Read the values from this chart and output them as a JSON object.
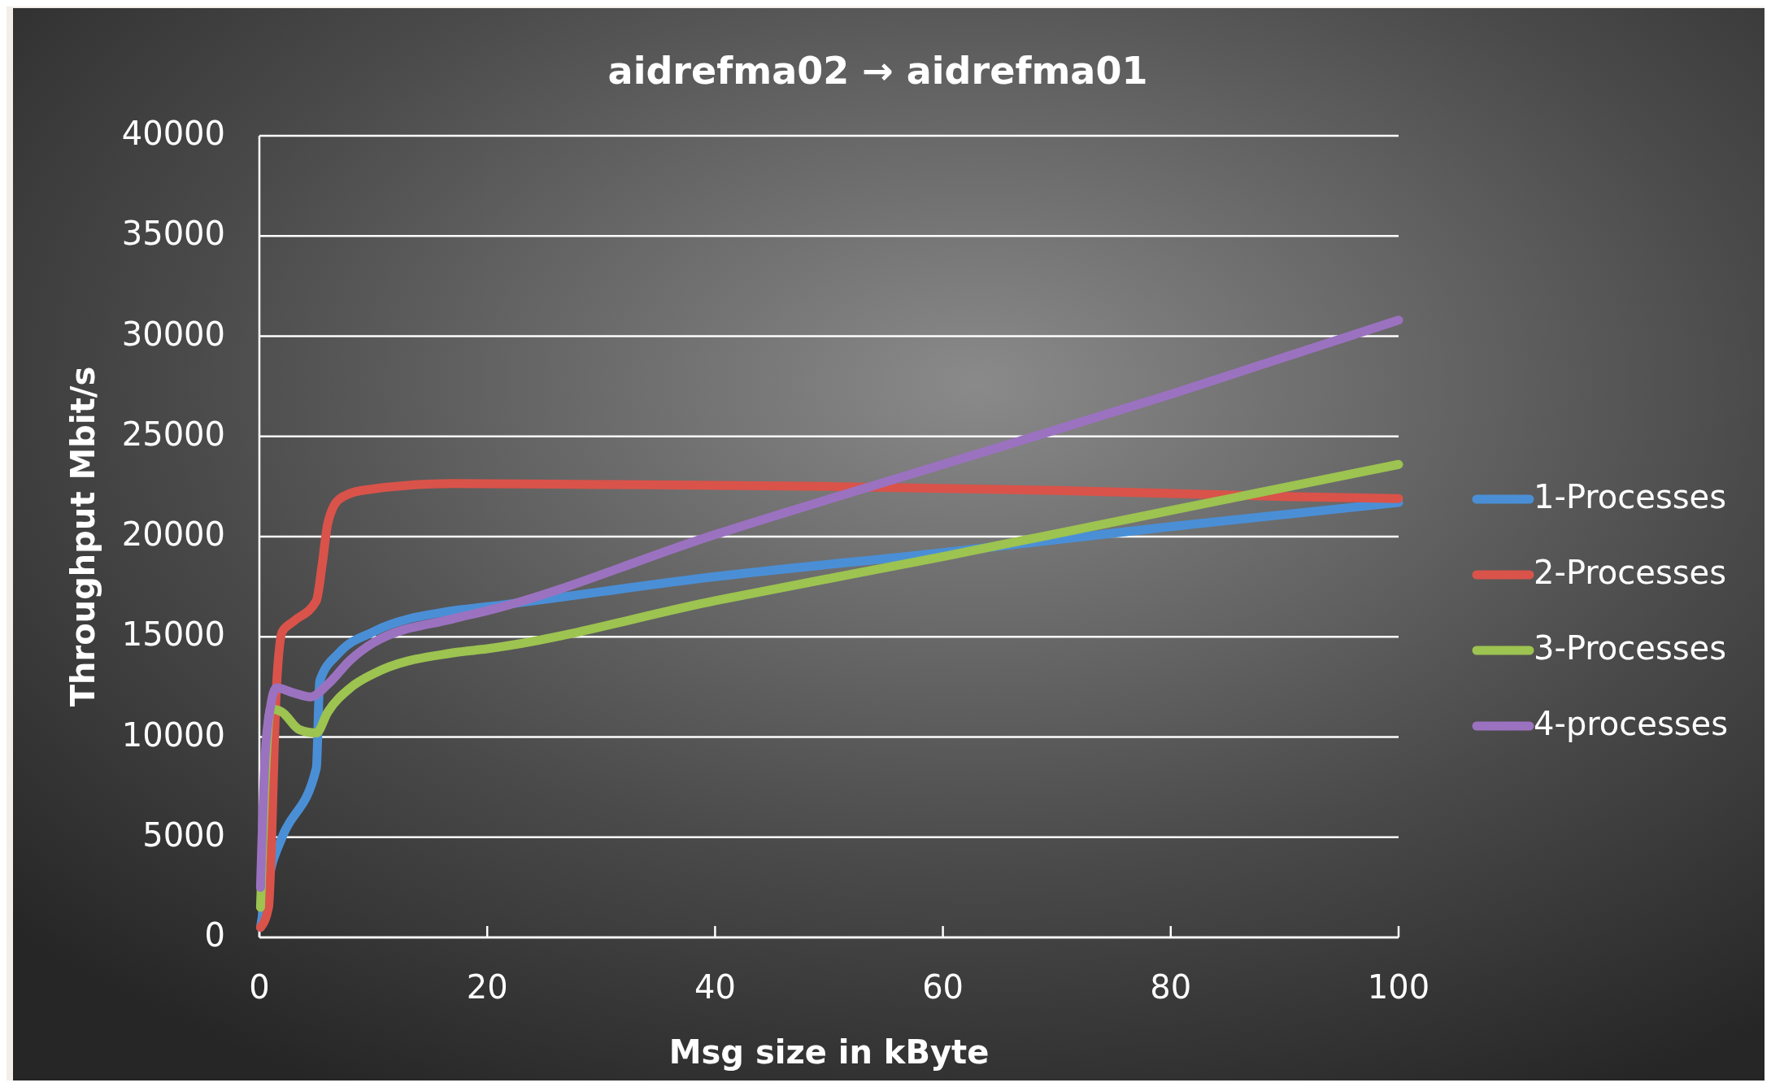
{
  "chart_data": {
    "type": "line",
    "title": "aidrefma02 → aidrefma01",
    "xlabel": "Msg size in kByte",
    "ylabel": "Throughput  Mbit/s",
    "xlim": [
      0,
      100
    ],
    "xticks": [
      0,
      20,
      40,
      60,
      80,
      100
    ],
    "ylim": [
      0,
      40000
    ],
    "yticks": [
      0,
      5000,
      10000,
      15000,
      20000,
      25000,
      30000,
      35000,
      40000
    ],
    "grid": "y",
    "legend": "right",
    "marker": "none",
    "line_style": "solid",
    "series": [
      {
        "name": "1-Processes",
        "color": "#4a8fd6",
        "x": [
          0.1,
          1,
          2,
          5,
          5.3,
          7,
          10,
          17,
          20,
          40,
          60,
          80,
          100
        ],
        "values": [
          500,
          3400,
          5000,
          8450,
          12800,
          14200,
          15250,
          16300,
          16500,
          18000,
          19200,
          20500,
          21700
        ]
      },
      {
        "name": "2-Processes",
        "color": "#d9534a",
        "x": [
          0.1,
          0.8,
          1.5,
          2,
          3,
          5,
          5.5,
          6,
          7,
          9,
          17,
          30,
          50,
          70,
          90,
          100
        ],
        "values": [
          500,
          1500,
          12500,
          15250,
          15770,
          16800,
          18550,
          20650,
          21860,
          22300,
          22650,
          22600,
          22500,
          22300,
          22000,
          21900
        ]
      },
      {
        "name": "3-Processes",
        "color": "#9dc350",
        "x": [
          0.1,
          1,
          2,
          3.5,
          5,
          6,
          8,
          10,
          17,
          20,
          40,
          60,
          80,
          100
        ],
        "values": [
          1500,
          11400,
          11240,
          10370,
          10200,
          11240,
          12460,
          13150,
          14200,
          14400,
          16800,
          19000,
          21300,
          23600
        ]
      },
      {
        "name": "4-processes",
        "color": "#9b72c0",
        "x": [
          0.1,
          0.5,
          1,
          1.5,
          3,
          4.5,
          6,
          8,
          10,
          17,
          20,
          40,
          60,
          80,
          100
        ],
        "values": [
          2500,
          9000,
          11600,
          12450,
          12200,
          12000,
          12630,
          13850,
          14700,
          15900,
          16300,
          20100,
          23600,
          27100,
          30800
        ]
      }
    ]
  }
}
